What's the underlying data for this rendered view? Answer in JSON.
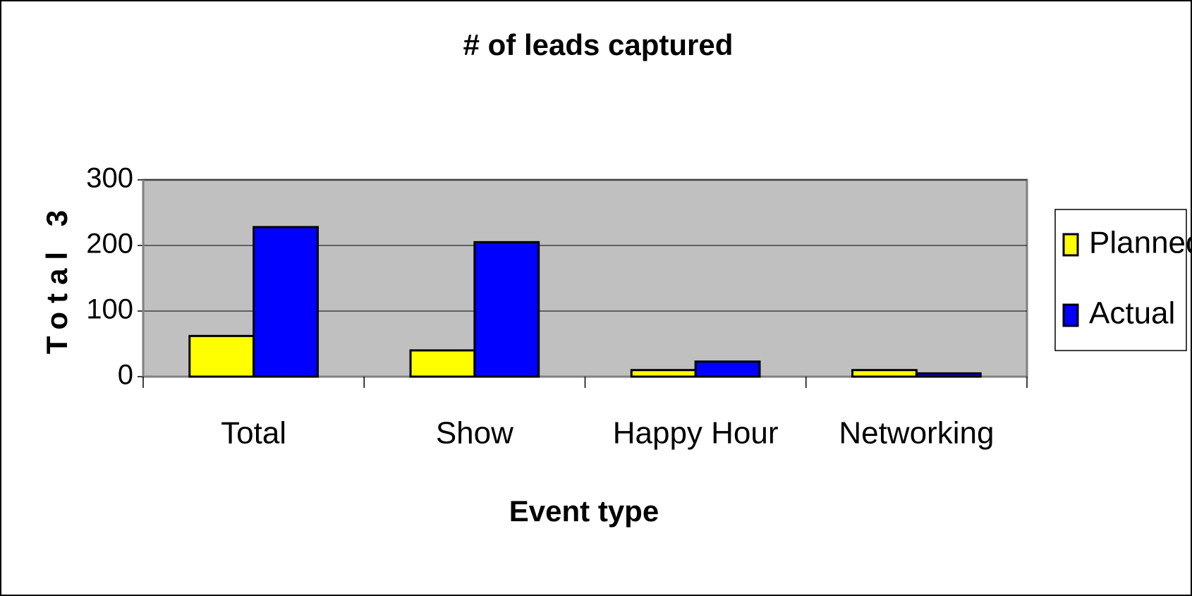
{
  "chart_data": {
    "type": "bar",
    "title": "# of leads captured",
    "x_label": "Event type",
    "y_label": "Total 3",
    "categories": [
      "Total",
      "Show",
      "Happy Hour",
      "Networking"
    ],
    "series": [
      {
        "name": "Planned",
        "color": "#ffff00",
        "values": [
          62,
          40,
          10,
          10
        ]
      },
      {
        "name": "Actual",
        "color": "#0000ff",
        "values": [
          228,
          205,
          23,
          5
        ]
      }
    ],
    "ylim": [
      0,
      300
    ],
    "yticks": [
      0,
      100,
      200,
      300
    ],
    "grid": true,
    "legend": "right"
  }
}
